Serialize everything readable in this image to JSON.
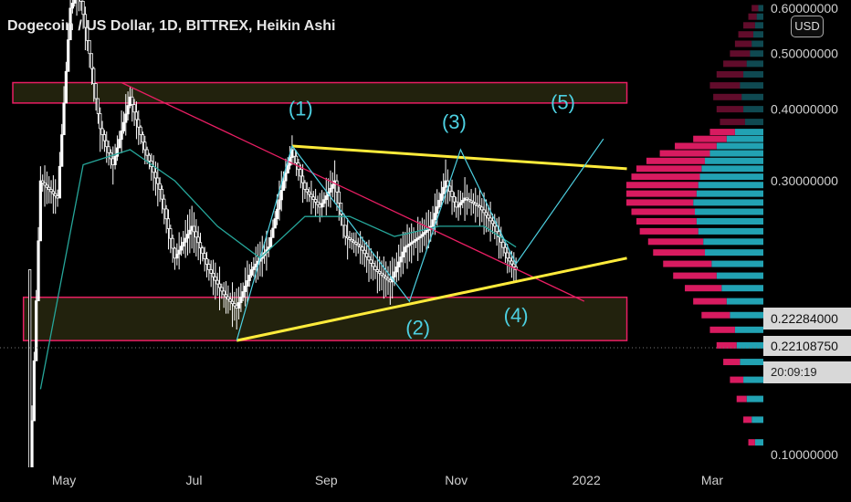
{
  "header": {
    "title": "Dogecoin / US Dollar, 1D, BITTREX, Heikin Ashi",
    "currency": "USD"
  },
  "price_tags": {
    "level_1": "0.22284000",
    "level_2": "0.22108750",
    "countdown": "20:09:19"
  },
  "colors": {
    "background": "#000000",
    "candles": "#ffffff",
    "moving_average": "#26a69a",
    "descending_trendline": "#e91e63",
    "channel_lines": "#ffeb3b",
    "wave_labels": "#4dd0e1",
    "zone_border": "#e91e63",
    "zone_fill": "#2a2a10",
    "volume_profile_up": "#22a2b3",
    "volume_profile_down": "#d81b60"
  },
  "chart_data": {
    "type": "line",
    "title": "Dogecoin / US Dollar, 1D, BITTREX, Heikin Ashi",
    "x_ticks": [
      "May",
      "Jul",
      "Sep",
      "Nov",
      "2022",
      "Mar"
    ],
    "y_ticks": [
      "0.60000000",
      "0.50000000",
      "0.40000000",
      "0.30000000",
      "0.10000000"
    ],
    "y_scale": "log",
    "ylim": [
      0.095,
      0.62
    ],
    "xlim": [
      "2021-04-01",
      "2022-03-25"
    ],
    "series": [
      {
        "x": [
          "2021-04-15",
          "2021-04-20",
          "2021-04-28",
          "2021-05-04",
          "2021-05-08",
          "2021-05-13",
          "2021-05-18",
          "2021-05-24",
          "2021-06-01",
          "2021-06-08",
          "2021-06-15",
          "2021-06-22",
          "2021-06-30",
          "2021-07-08",
          "2021-07-15",
          "2021-07-21",
          "2021-07-28",
          "2021-08-05",
          "2021-08-12",
          "2021-08-16",
          "2021-08-22",
          "2021-08-29",
          "2021-09-05",
          "2021-09-10",
          "2021-09-17",
          "2021-09-24",
          "2021-10-01",
          "2021-10-08",
          "2021-10-15",
          "2021-10-20",
          "2021-10-27",
          "2021-11-01",
          "2021-11-05",
          "2021-11-12",
          "2021-11-19",
          "2021-11-25",
          "2021-11-29"
        ],
        "values": [
          0.09,
          0.3,
          0.28,
          0.6,
          0.65,
          0.5,
          0.37,
          0.32,
          0.42,
          0.34,
          0.29,
          0.22,
          0.25,
          0.21,
          0.19,
          0.18,
          0.21,
          0.23,
          0.3,
          0.34,
          0.29,
          0.27,
          0.3,
          0.24,
          0.23,
          0.21,
          0.2,
          0.23,
          0.24,
          0.25,
          0.3,
          0.27,
          0.28,
          0.27,
          0.25,
          0.22,
          0.21
        ]
      },
      {
        "name_hidden": "",
        "x": [
          "2021-04-20",
          "2021-05-10",
          "2021-06-01",
          "2021-06-22",
          "2021-07-12",
          "2021-08-01",
          "2021-08-22",
          "2021-09-12",
          "2021-10-03",
          "2021-10-24",
          "2021-11-14",
          "2021-11-29"
        ],
        "values": [
          0.13,
          0.32,
          0.34,
          0.3,
          0.25,
          0.22,
          0.26,
          0.26,
          0.24,
          0.25,
          0.25,
          0.23
        ]
      }
    ],
    "annotations": {
      "wave_labels": [
        {
          "text": "(1)",
          "x": "2021-08-20",
          "y": 0.39
        },
        {
          "text": "(2)",
          "x": "2021-10-14",
          "y": 0.162
        },
        {
          "text": "(3)",
          "x": "2021-10-31",
          "y": 0.37
        },
        {
          "text": "(4)",
          "x": "2021-11-29",
          "y": 0.17
        },
        {
          "text": "(5)",
          "x": "2021-12-21",
          "y": 0.4
        }
      ],
      "zones": [
        {
          "from": "2021-04-07",
          "to": "2022-01-20",
          "low": 0.41,
          "high": 0.445
        },
        {
          "from": "2021-04-12",
          "to": "2022-01-20",
          "low": 0.158,
          "high": 0.188
        }
      ],
      "trendlines": [
        {
          "kind": "descending",
          "from": [
            "2021-05-28",
            0.445
          ],
          "to": [
            "2021-12-31",
            0.185
          ]
        },
        {
          "kind": "channel_upper",
          "from": [
            "2021-08-16",
            0.345
          ],
          "to": [
            "2022-01-20",
            0.315
          ]
        },
        {
          "kind": "channel_lower",
          "from": [
            "2021-07-21",
            0.158
          ],
          "to": [
            "2022-01-20",
            0.22
          ]
        }
      ],
      "wave_path": {
        "x": [
          "2021-07-21",
          "2021-08-16",
          "2021-10-10",
          "2021-11-03",
          "2021-11-29",
          "2022-01-09"
        ],
        "y": [
          0.158,
          0.345,
          0.185,
          0.34,
          0.215,
          0.355
        ]
      }
    },
    "volume_profile": {
      "price_levels": [
        0.105,
        0.115,
        0.125,
        0.135,
        0.145,
        0.155,
        0.165,
        0.175,
        0.185,
        0.195,
        0.205,
        0.215,
        0.225,
        0.235,
        0.245,
        0.255,
        0.265,
        0.275,
        0.285,
        0.295,
        0.305,
        0.315,
        0.325,
        0.335,
        0.345,
        0.355,
        0.365,
        0.38,
        0.4,
        0.42,
        0.44,
        0.46,
        0.48,
        0.5,
        0.52,
        0.54,
        0.56,
        0.58,
        0.6
      ],
      "up_volume": [
        10,
        14,
        20,
        24,
        28,
        32,
        34,
        40,
        44,
        50,
        56,
        62,
        70,
        72,
        78,
        80,
        82,
        84,
        80,
        78,
        76,
        74,
        70,
        64,
        56,
        44,
        34,
        22,
        24,
        26,
        28,
        24,
        20,
        16,
        14,
        12,
        10,
        8,
        6
      ],
      "down_volume": [
        8,
        10,
        12,
        16,
        20,
        24,
        30,
        34,
        40,
        44,
        52,
        58,
        62,
        66,
        70,
        72,
        76,
        80,
        84,
        86,
        82,
        78,
        70,
        60,
        50,
        40,
        30,
        30,
        32,
        34,
        36,
        32,
        28,
        24,
        20,
        18,
        14,
        10,
        8
      ]
    }
  }
}
